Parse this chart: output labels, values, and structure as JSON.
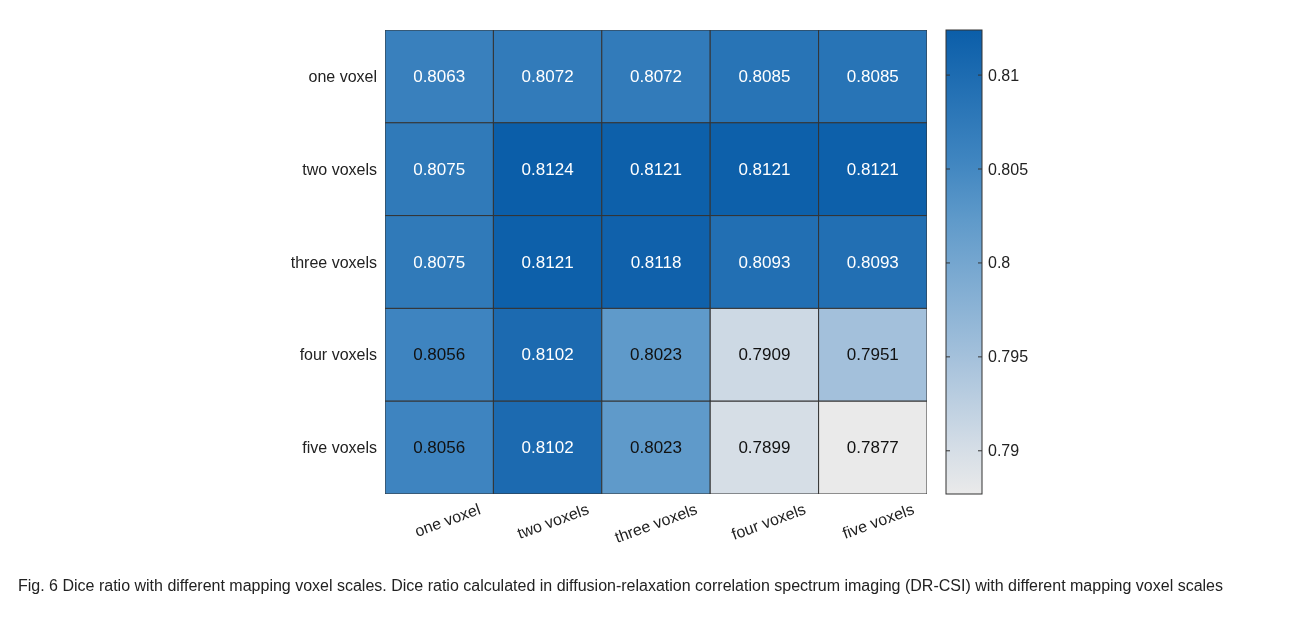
{
  "chart_data": {
    "type": "heatmap",
    "categories": [
      "one voxel",
      "two voxels",
      "three voxels",
      "four voxels",
      "five voxels"
    ],
    "y_categories": [
      "one voxel",
      "two voxels",
      "three voxels",
      "four voxels",
      "five voxels"
    ],
    "cells": [
      [
        0.8063,
        0.8072,
        0.8072,
        0.8085,
        0.8085
      ],
      [
        0.8075,
        0.8124,
        0.8121,
        0.8121,
        0.8121
      ],
      [
        0.8075,
        0.8121,
        0.8118,
        0.8093,
        0.8093
      ],
      [
        0.8056,
        0.8102,
        0.8023,
        0.7909,
        0.7951
      ],
      [
        0.8056,
        0.8102,
        0.8023,
        0.7899,
        0.7877
      ]
    ],
    "clim": [
      0.7877,
      0.8124
    ],
    "cticks": [
      0.79,
      0.795,
      0.8,
      0.805,
      0.81
    ],
    "data_labels": true,
    "annotations": [
      "Fig. 6 Dice ratio with different mapping voxel scales. Dice ratio calculated in diffusion-relaxation correlation spectrum imaging (DR-CSI) with different mapping voxel scales"
    ]
  }
}
